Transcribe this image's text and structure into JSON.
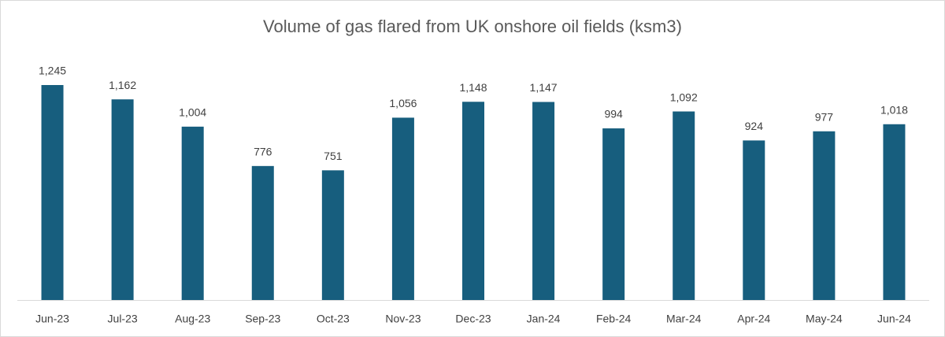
{
  "chart_data": {
    "type": "bar",
    "title": "Volume of gas flared from UK onshore oil fields (ksm3)",
    "categories": [
      "Jun-23",
      "Jul-23",
      "Aug-23",
      "Sep-23",
      "Oct-23",
      "Nov-23",
      "Dec-23",
      "Jan-24",
      "Feb-24",
      "Mar-24",
      "Apr-24",
      "May-24",
      "Jun-24"
    ],
    "values": [
      1245,
      1162,
      1004,
      776,
      751,
      1056,
      1148,
      1147,
      994,
      1092,
      924,
      977,
      1018
    ],
    "value_labels": [
      "1,245",
      "1,162",
      "1,004",
      "776",
      "751",
      "1,056",
      "1,148",
      "1,147",
      "994",
      "1,092",
      "924",
      "977",
      "1,018"
    ],
    "color": "#175e7e"
  }
}
